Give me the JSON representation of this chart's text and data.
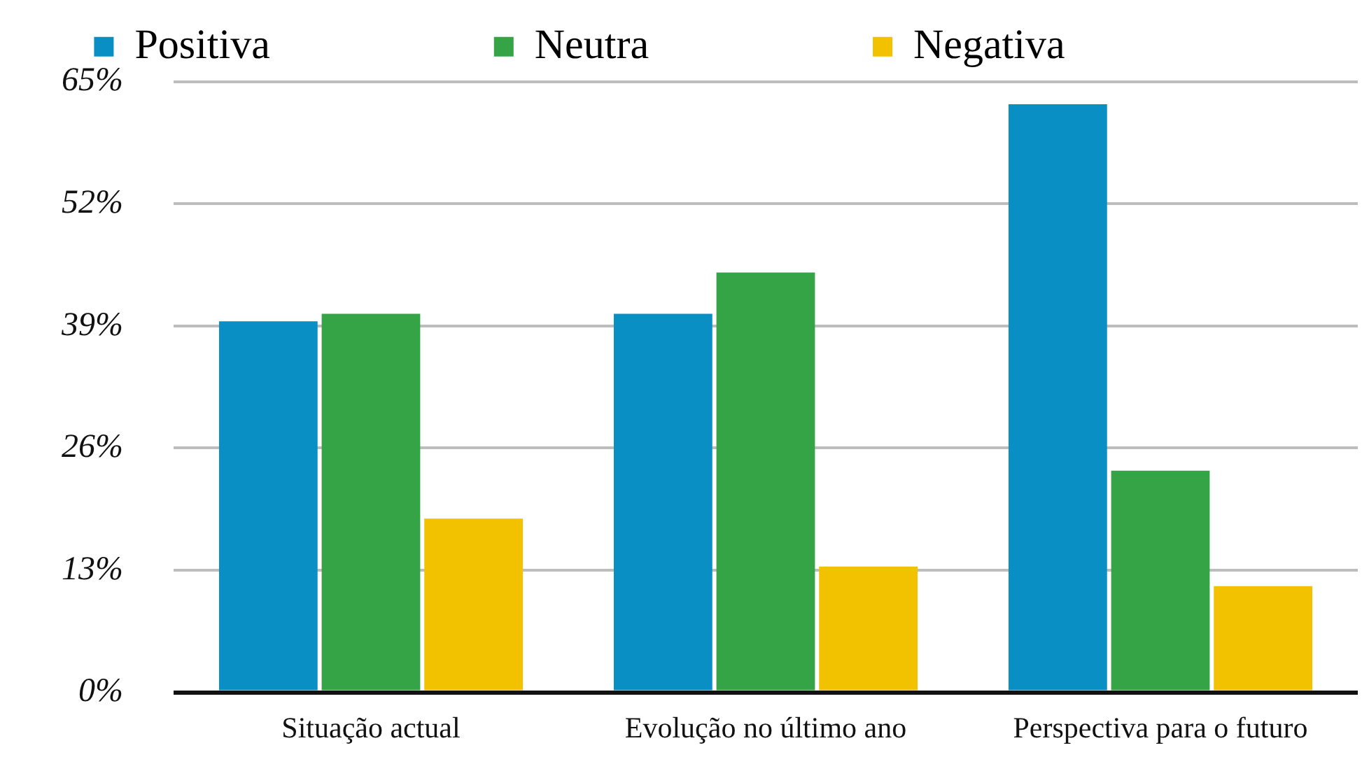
{
  "chart_data": {
    "type": "bar",
    "categories": [
      "Situação actual",
      "Evolução no último ano",
      "Perspectiva para o futuro"
    ],
    "series": [
      {
        "name": "Positiva",
        "color": "#0a8fc4",
        "values": [
          39.5,
          40.3,
          62.6
        ]
      },
      {
        "name": "Neutra",
        "color": "#34a447",
        "values": [
          40.3,
          44.7,
          23.6
        ]
      },
      {
        "name": "Negativa",
        "color": "#f2c200",
        "values": [
          18.5,
          13.4,
          11.3
        ]
      }
    ],
    "ylim": [
      0,
      65
    ],
    "yticks": [
      {
        "value": 0,
        "label": "0%"
      },
      {
        "value": 13,
        "label": "13%"
      },
      {
        "value": 26,
        "label": "26%"
      },
      {
        "value": 39,
        "label": "39%"
      },
      {
        "value": 52,
        "label": "52%"
      },
      {
        "value": 65,
        "label": "65%"
      }
    ],
    "grid": "y",
    "legend": "top"
  }
}
